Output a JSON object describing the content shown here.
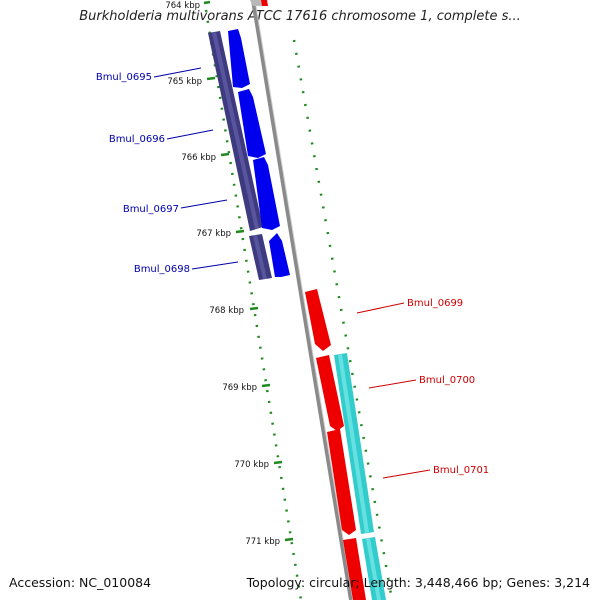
{
  "title": "Burkholderia multivorans ATCC 17616 chromosome 1, complete s...",
  "footer": {
    "accession": "Accession: NC_010084",
    "summary": "Topology: circular; Length: 3,448,466 bp; Genes: 3,214"
  },
  "colors": {
    "backbone": "#8a8a8a",
    "gc_skew": "#1e8a1e",
    "forward_gene": "#0000ee",
    "reverse_gene": "#ee0000",
    "operon_left": "#3e3a80",
    "operon_right": "#33cccc",
    "label_left": "#0000aa",
    "label_right": "#cc0000"
  },
  "ticks": [
    {
      "label": "764 kbp"
    },
    {
      "label": "765 kbp"
    },
    {
      "label": "766 kbp"
    },
    {
      "label": "767 kbp"
    },
    {
      "label": "768 kbp"
    },
    {
      "label": "769 kbp"
    },
    {
      "label": "770 kbp"
    },
    {
      "label": "771 kbp"
    }
  ],
  "genes": [
    {
      "name": "Bmul_0695",
      "strand": "forward"
    },
    {
      "name": "Bmul_0696",
      "strand": "forward"
    },
    {
      "name": "Bmul_0697",
      "strand": "forward"
    },
    {
      "name": "Bmul_0698",
      "strand": "forward"
    },
    {
      "name": "Bmul_0699",
      "strand": "reverse"
    },
    {
      "name": "Bmul_0700",
      "strand": "reverse"
    },
    {
      "name": "Bmul_0701",
      "strand": "reverse"
    }
  ]
}
